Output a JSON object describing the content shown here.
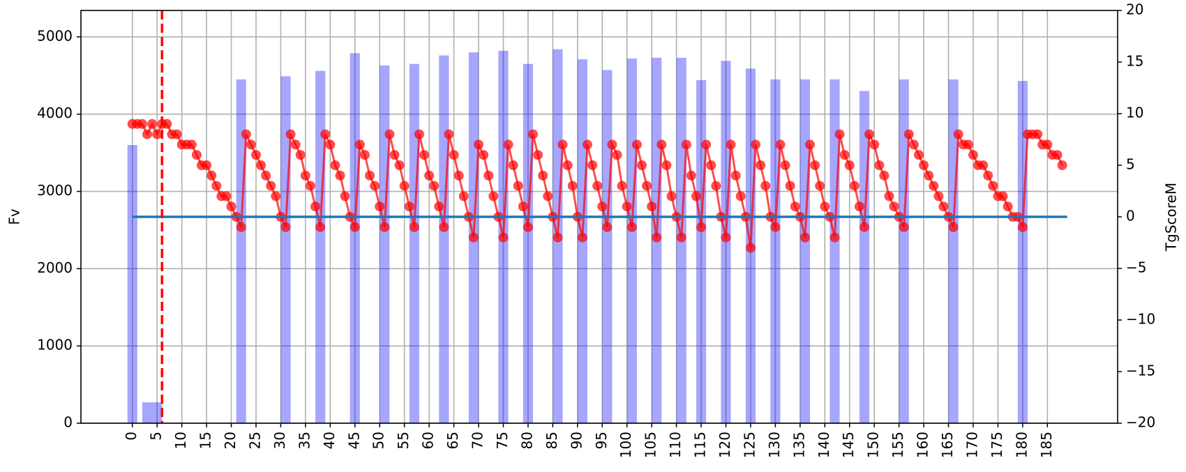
{
  "chart_data": {
    "type": "combo",
    "ylabel": "Fv",
    "y2label": "TgScoreM",
    "xlim": [
      -10.4,
      199.2
    ],
    "xticks": [
      0,
      5,
      10,
      15,
      20,
      25,
      30,
      35,
      40,
      45,
      50,
      55,
      60,
      65,
      70,
      75,
      80,
      85,
      90,
      95,
      100,
      105,
      110,
      115,
      120,
      125,
      130,
      135,
      140,
      145,
      150,
      155,
      160,
      165,
      170,
      175,
      180,
      185
    ],
    "ylim": [
      0,
      5342
    ],
    "yticks": [
      0,
      1000,
      2000,
      3000,
      4000,
      5000
    ],
    "y2lim": [
      -20,
      20
    ],
    "y2ticks": [
      {
        "value": -20,
        "label": "−20"
      },
      {
        "value": -15,
        "label": "−15"
      },
      {
        "value": -10,
        "label": "−10"
      },
      {
        "value": -5,
        "label": "−5"
      },
      0,
      5,
      10,
      15,
      20
    ],
    "grid": true,
    "series": [
      {
        "type": "bar",
        "color": "#0000ff",
        "x": [
          0,
          3,
          5,
          22,
          31,
          38,
          45,
          51,
          57,
          63,
          69,
          75,
          80,
          86,
          91,
          96,
          101,
          106,
          111,
          115,
          120,
          125,
          130,
          136,
          142,
          148,
          156,
          166,
          180
        ],
        "values": [
          3600,
          270,
          270,
          4450,
          4490,
          4560,
          4790,
          4630,
          4650,
          4760,
          4800,
          4820,
          4650,
          4840,
          4710,
          4570,
          4720,
          4730,
          4730,
          4440,
          4690,
          4590,
          4450,
          4450,
          4450,
          4300,
          4450,
          4450,
          4430
        ]
      },
      {
        "type": "line",
        "axis": "y2",
        "color": "#ff0000",
        "markers": true,
        "x": [
          0,
          1,
          2,
          3,
          4,
          5,
          6,
          7,
          8,
          9,
          10,
          11,
          12,
          13,
          14,
          15,
          16,
          17,
          18,
          19,
          20,
          21,
          22,
          23,
          24,
          25,
          26,
          27,
          28,
          29,
          30,
          31,
          32,
          33,
          34,
          35,
          36,
          37,
          38,
          39,
          40,
          41,
          42,
          43,
          44,
          45,
          46,
          47,
          48,
          49,
          50,
          51,
          52,
          53,
          54,
          55,
          56,
          57,
          58,
          59,
          60,
          61,
          62,
          63,
          64,
          65,
          66,
          67,
          68,
          69,
          70,
          71,
          72,
          73,
          74,
          75,
          76,
          77,
          78,
          79,
          80,
          81,
          82,
          83,
          84,
          85,
          86,
          87,
          88,
          89,
          90,
          91,
          92,
          93,
          94,
          95,
          96,
          97,
          98,
          99,
          100,
          101,
          102,
          103,
          104,
          105,
          106,
          107,
          108,
          109,
          110,
          111,
          112,
          113,
          114,
          115,
          116,
          117,
          118,
          119,
          120,
          121,
          122,
          123,
          124,
          125,
          126,
          127,
          128,
          129,
          130,
          131,
          132,
          133,
          134,
          135,
          136,
          137,
          138,
          139,
          140,
          141,
          142,
          143,
          144,
          145,
          146,
          147,
          148,
          149,
          150,
          151,
          152,
          153,
          154,
          155,
          156,
          157,
          158,
          159,
          160,
          161,
          162,
          163,
          164,
          165,
          166,
          167,
          168,
          169,
          170,
          171,
          172,
          173,
          174,
          175,
          176,
          177,
          178,
          179,
          180,
          181,
          182,
          183,
          184,
          185,
          186,
          187,
          188
        ],
        "values": [
          9,
          9,
          9,
          8,
          9,
          8,
          9,
          9,
          8,
          8,
          7,
          7,
          7,
          6,
          5,
          5,
          4,
          3,
          2,
          2,
          1,
          0,
          -1,
          8,
          7,
          6,
          5,
          4,
          3,
          2,
          0,
          -1,
          8,
          7,
          6,
          4,
          3,
          1,
          -1,
          8,
          7,
          5,
          4,
          2,
          0,
          -1,
          7,
          6,
          4,
          3,
          1,
          -1,
          8,
          6,
          5,
          3,
          1,
          -1,
          8,
          6,
          4,
          3,
          1,
          -1,
          8,
          6,
          4,
          2,
          0,
          -2,
          7,
          6,
          4,
          2,
          0,
          -2,
          7,
          5,
          3,
          1,
          -1,
          8,
          6,
          4,
          2,
          0,
          -2,
          7,
          5,
          3,
          0,
          -2,
          7,
          5,
          3,
          1,
          -1,
          7,
          6,
          3,
          1,
          -1,
          7,
          5,
          3,
          1,
          -2,
          7,
          5,
          2,
          0,
          -2,
          7,
          4,
          2,
          -1,
          7,
          5,
          3,
          0,
          -2,
          7,
          4,
          2,
          0,
          -3,
          7,
          5,
          3,
          0,
          -1,
          7,
          5,
          3,
          1,
          0,
          -2,
          7,
          5,
          3,
          1,
          0,
          -2,
          8,
          6,
          5,
          3,
          1,
          -1,
          8,
          7,
          5,
          4,
          2,
          1,
          0,
          -1,
          8,
          7,
          6,
          5,
          4,
          3,
          2,
          1,
          0,
          -1,
          8,
          7,
          7,
          6,
          5,
          5,
          4,
          3,
          2,
          2,
          1,
          0,
          0,
          -1,
          8,
          8,
          8,
          7,
          7,
          6,
          6,
          5
        ]
      },
      {
        "type": "hline",
        "axis": "y2",
        "color": "#1f77b4",
        "x": [
          0,
          189
        ],
        "values": [
          0,
          0
        ]
      }
    ],
    "vlines": [
      {
        "x": 6,
        "color": "#ff0000"
      }
    ]
  }
}
